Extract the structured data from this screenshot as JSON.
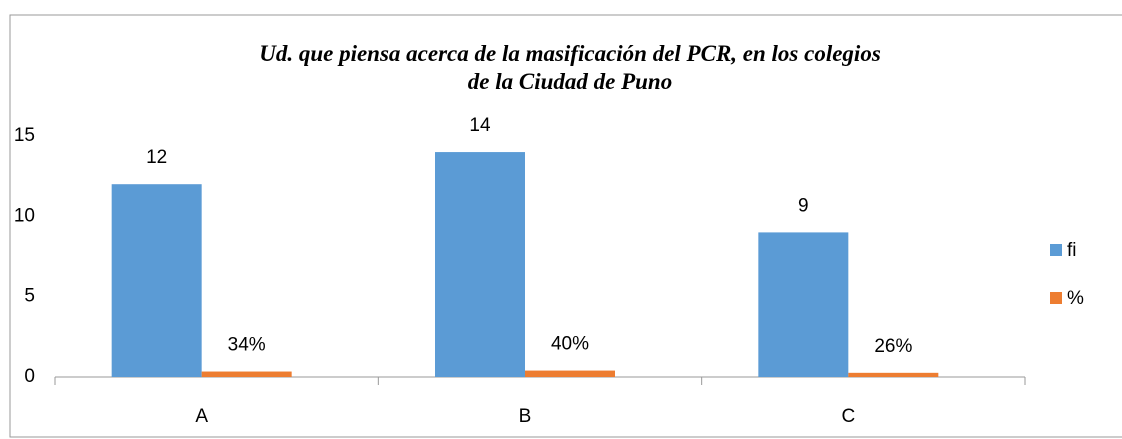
{
  "chart_data": {
    "type": "bar",
    "title": "Ud. que piensa acerca de la masificación del PCR, en los colegios  de la Ciudad de Puno",
    "categories": [
      "A",
      "B",
      "C"
    ],
    "series": [
      {
        "name": "fi",
        "color": "#5b9bd5",
        "values": [
          12,
          14,
          9
        ]
      },
      {
        "name": "%",
        "color": "#ed7d31",
        "values": [
          0.34,
          0.4,
          0.26
        ],
        "value_labels": [
          "34%",
          "40%",
          "26%"
        ]
      }
    ],
    "ylim": [
      0,
      15
    ],
    "yticks": [
      0,
      5,
      10,
      15
    ],
    "grid": false,
    "legend": "right"
  }
}
